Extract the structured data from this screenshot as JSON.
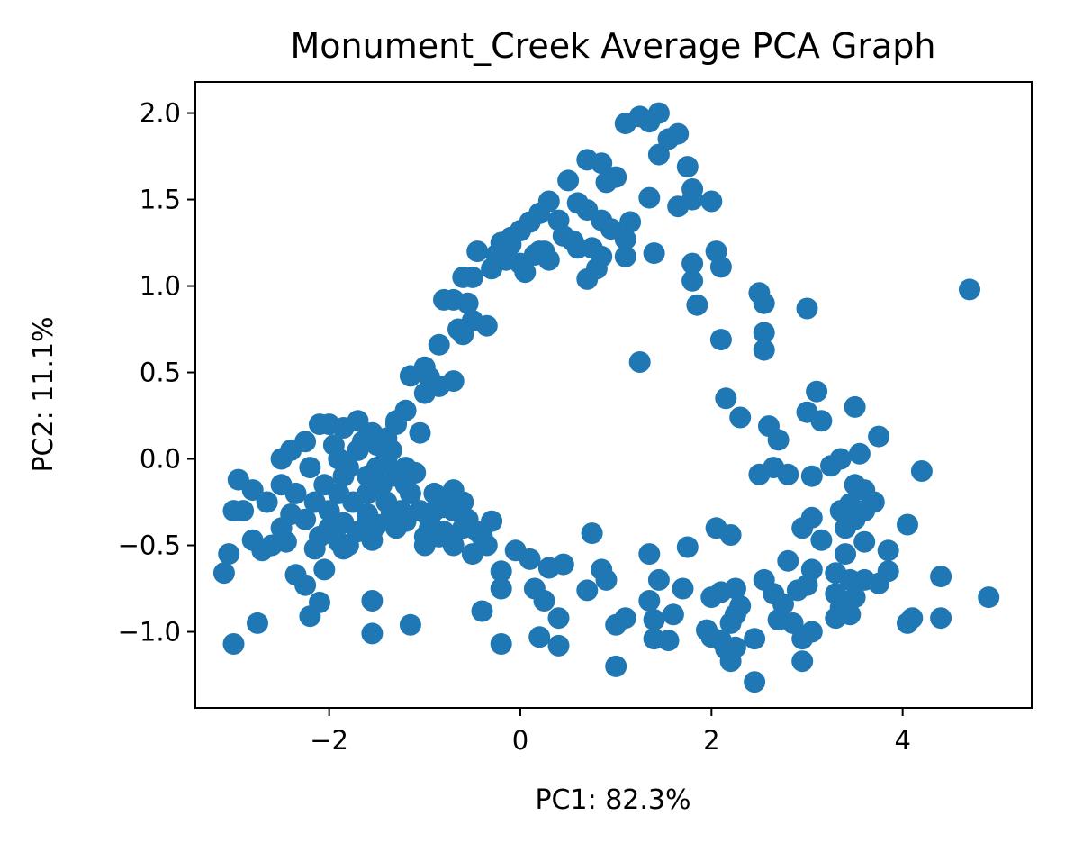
{
  "chart_data": {
    "type": "scatter",
    "title": "Monument_Creek Average PCA Graph",
    "xlabel": "PC1: 82.3%",
    "ylabel": "PC2: 11.1%",
    "xlim": [
      -3.4,
      5.35
    ],
    "ylim": [
      -1.44,
      2.18
    ],
    "xticks": [
      -2,
      0,
      2,
      4
    ],
    "xtick_labels": [
      "−2",
      "0",
      "2",
      "4"
    ],
    "yticks": [
      -1.0,
      -0.5,
      0.0,
      0.5,
      1.0,
      1.5,
      2.0
    ],
    "ytick_labels": [
      "−1.0",
      "−0.5",
      "0.0",
      "0.5",
      "1.0",
      "1.5",
      "2.0"
    ],
    "grid": false,
    "legend": "none",
    "marker_color": "#1f77b4",
    "series": [
      {
        "points": [
          [
            1.1,
            1.94
          ],
          [
            1.25,
            1.98
          ],
          [
            1.35,
            1.95
          ],
          [
            1.45,
            2.0
          ],
          [
            1.55,
            1.85
          ],
          [
            1.65,
            1.88
          ],
          [
            1.45,
            1.76
          ],
          [
            1.75,
            1.69
          ],
          [
            1.8,
            1.56
          ],
          [
            1.8,
            1.5
          ],
          [
            1.35,
            1.51
          ],
          [
            1.65,
            1.46
          ],
          [
            2.0,
            1.49
          ],
          [
            0.7,
            1.73
          ],
          [
            0.85,
            1.71
          ],
          [
            0.9,
            1.6
          ],
          [
            1.0,
            1.63
          ],
          [
            0.5,
            1.61
          ],
          [
            0.6,
            1.48
          ],
          [
            0.7,
            1.44
          ],
          [
            0.3,
            1.49
          ],
          [
            0.4,
            1.38
          ],
          [
            0.2,
            1.42
          ],
          [
            0.1,
            1.37
          ],
          [
            0.0,
            1.32
          ],
          [
            -0.1,
            1.28
          ],
          [
            -0.2,
            1.25
          ],
          [
            0.25,
            1.2
          ],
          [
            0.55,
            1.26
          ],
          [
            0.75,
            1.22
          ],
          [
            0.85,
            1.38
          ],
          [
            0.95,
            1.33
          ],
          [
            1.15,
            1.37
          ],
          [
            1.1,
            1.27
          ],
          [
            1.4,
            1.19
          ],
          [
            1.1,
            1.17
          ],
          [
            0.85,
            1.17
          ],
          [
            0.8,
            1.1
          ],
          [
            0.7,
            1.04
          ],
          [
            0.6,
            1.22
          ],
          [
            0.45,
            1.29
          ],
          [
            0.2,
            1.2
          ],
          [
            0.3,
            1.15
          ],
          [
            0.0,
            1.13
          ],
          [
            -0.15,
            1.15
          ],
          [
            -0.3,
            1.1
          ],
          [
            -0.45,
            1.2
          ],
          [
            -0.5,
            1.05
          ],
          [
            -0.6,
            1.05
          ],
          [
            -0.25,
            1.18
          ],
          [
            0.05,
            1.08
          ],
          [
            0.15,
            1.18
          ],
          [
            -0.1,
            1.24
          ],
          [
            -0.55,
            0.9
          ],
          [
            -0.7,
            0.92
          ],
          [
            -0.8,
            0.92
          ],
          [
            -0.5,
            0.8
          ],
          [
            -0.35,
            0.77
          ],
          [
            -0.65,
            0.75
          ],
          [
            -0.6,
            0.72
          ],
          [
            -0.85,
            0.66
          ],
          [
            -1.15,
            0.48
          ],
          [
            -1.0,
            0.53
          ],
          [
            -0.95,
            0.47
          ],
          [
            -0.7,
            0.45
          ],
          [
            -0.85,
            0.42
          ],
          [
            -1.0,
            0.38
          ],
          [
            -1.2,
            0.28
          ],
          [
            -1.3,
            0.22
          ],
          [
            -1.05,
            0.15
          ],
          [
            2.05,
            1.2
          ],
          [
            2.1,
            1.11
          ],
          [
            1.8,
            1.13
          ],
          [
            1.8,
            1.03
          ],
          [
            1.85,
            0.89
          ],
          [
            2.1,
            0.69
          ],
          [
            2.5,
            0.96
          ],
          [
            2.55,
            0.9
          ],
          [
            2.55,
            0.73
          ],
          [
            2.55,
            0.63
          ],
          [
            3.0,
            0.87
          ],
          [
            1.25,
            0.56
          ],
          [
            2.15,
            0.35
          ],
          [
            2.3,
            0.24
          ],
          [
            2.6,
            0.19
          ],
          [
            2.7,
            0.11
          ],
          [
            2.5,
            -0.09
          ],
          [
            2.65,
            -0.05
          ],
          [
            2.8,
            -0.09
          ],
          [
            3.0,
            0.27
          ],
          [
            3.1,
            0.39
          ],
          [
            3.15,
            0.22
          ],
          [
            3.5,
            0.3
          ],
          [
            3.75,
            0.13
          ],
          [
            4.7,
            0.98
          ],
          [
            3.05,
            -0.1
          ],
          [
            3.25,
            -0.04
          ],
          [
            3.35,
            0.0
          ],
          [
            3.55,
            0.03
          ],
          [
            3.5,
            -0.15
          ],
          [
            3.6,
            -0.18
          ],
          [
            3.45,
            -0.26
          ],
          [
            3.5,
            -0.35
          ],
          [
            3.6,
            -0.3
          ],
          [
            3.7,
            -0.25
          ],
          [
            3.35,
            -0.3
          ],
          [
            3.4,
            -0.4
          ],
          [
            3.05,
            -0.34
          ],
          [
            2.95,
            -0.4
          ],
          [
            3.15,
            -0.47
          ],
          [
            3.4,
            -0.55
          ],
          [
            3.6,
            -0.48
          ],
          [
            4.05,
            -0.38
          ],
          [
            4.2,
            -0.07
          ],
          [
            2.8,
            -0.59
          ],
          [
            3.05,
            -0.64
          ],
          [
            3.3,
            -0.66
          ],
          [
            3.45,
            -0.7
          ],
          [
            3.6,
            -0.7
          ],
          [
            3.75,
            -0.72
          ],
          [
            3.85,
            -0.65
          ],
          [
            3.85,
            -0.53
          ],
          [
            2.55,
            -0.7
          ],
          [
            2.65,
            -0.78
          ],
          [
            2.75,
            -0.84
          ],
          [
            2.9,
            -0.76
          ],
          [
            3.0,
            -0.73
          ],
          [
            3.3,
            -0.78
          ],
          [
            3.35,
            -0.86
          ],
          [
            3.5,
            -0.8
          ],
          [
            2.7,
            -0.93
          ],
          [
            2.85,
            -0.95
          ],
          [
            3.05,
            -1.0
          ],
          [
            3.3,
            -0.92
          ],
          [
            3.45,
            -0.9
          ],
          [
            2.95,
            -1.04
          ],
          [
            2.95,
            -1.17
          ],
          [
            2.45,
            -1.04
          ],
          [
            2.45,
            -1.29
          ],
          [
            4.05,
            -0.95
          ],
          [
            4.1,
            -0.92
          ],
          [
            4.4,
            -0.92
          ],
          [
            4.4,
            -0.68
          ],
          [
            4.9,
            -0.8
          ],
          [
            2.0,
            -0.8
          ],
          [
            2.1,
            -0.77
          ],
          [
            2.25,
            -0.75
          ],
          [
            2.3,
            -0.85
          ],
          [
            2.25,
            -0.9
          ],
          [
            2.2,
            -0.95
          ],
          [
            1.95,
            -0.99
          ],
          [
            2.0,
            -1.03
          ],
          [
            2.1,
            -1.05
          ],
          [
            2.15,
            -1.1
          ],
          [
            2.25,
            -1.09
          ],
          [
            2.2,
            -1.17
          ],
          [
            2.05,
            -0.4
          ],
          [
            2.2,
            -0.44
          ],
          [
            1.75,
            -0.51
          ],
          [
            1.7,
            -0.75
          ],
          [
            1.6,
            -0.9
          ],
          [
            1.45,
            -0.7
          ],
          [
            1.35,
            -0.55
          ],
          [
            1.35,
            -0.82
          ],
          [
            1.4,
            -1.04
          ],
          [
            1.55,
            -1.05
          ],
          [
            1.4,
            -0.93
          ],
          [
            0.75,
            -0.43
          ],
          [
            0.85,
            -0.64
          ],
          [
            0.9,
            -0.7
          ],
          [
            0.7,
            -0.76
          ],
          [
            1.0,
            -0.96
          ],
          [
            1.1,
            -0.92
          ],
          [
            1.0,
            -1.2
          ],
          [
            0.45,
            -0.61
          ],
          [
            0.3,
            -0.63
          ],
          [
            0.15,
            -0.75
          ],
          [
            0.25,
            -0.82
          ],
          [
            0.4,
            -0.92
          ],
          [
            0.4,
            -1.08
          ],
          [
            0.2,
            -1.03
          ],
          [
            -0.2,
            -1.07
          ],
          [
            -0.4,
            -0.88
          ],
          [
            -0.2,
            -0.75
          ],
          [
            -0.2,
            -0.65
          ],
          [
            -0.05,
            -0.53
          ],
          [
            0.1,
            -0.58
          ],
          [
            -0.3,
            -0.36
          ],
          [
            -0.4,
            -0.45
          ],
          [
            -0.35,
            -0.5
          ],
          [
            -0.5,
            -0.55
          ],
          [
            -0.7,
            -0.5
          ],
          [
            -0.6,
            -0.4
          ],
          [
            -0.7,
            -0.3
          ],
          [
            -0.8,
            -0.42
          ],
          [
            -0.9,
            -0.3
          ],
          [
            -0.95,
            -0.4
          ],
          [
            -1.0,
            -0.5
          ],
          [
            -0.9,
            -0.2
          ],
          [
            -0.7,
            -0.18
          ],
          [
            -0.6,
            -0.25
          ],
          [
            -1.2,
            -0.36
          ],
          [
            -1.3,
            -0.4
          ],
          [
            -1.5,
            -0.38
          ],
          [
            -1.6,
            -0.32
          ],
          [
            -1.7,
            -0.42
          ],
          [
            -1.55,
            -0.47
          ],
          [
            -1.85,
            -0.37
          ],
          [
            -2.0,
            -0.4
          ],
          [
            -2.1,
            -0.45
          ],
          [
            -2.25,
            -0.35
          ],
          [
            -2.4,
            -0.32
          ],
          [
            -2.5,
            -0.4
          ],
          [
            -2.45,
            -0.48
          ],
          [
            -2.6,
            -0.5
          ],
          [
            -2.7,
            -0.53
          ],
          [
            -2.8,
            -0.47
          ],
          [
            -2.9,
            -0.3
          ],
          [
            -3.0,
            -0.3
          ],
          [
            -2.95,
            -0.12
          ],
          [
            -2.8,
            -0.18
          ],
          [
            -2.65,
            -0.25
          ],
          [
            -2.5,
            -0.15
          ],
          [
            -2.35,
            -0.2
          ],
          [
            -2.2,
            -0.05
          ],
          [
            -2.5,
            0.0
          ],
          [
            -2.4,
            0.05
          ],
          [
            -2.25,
            0.1
          ],
          [
            -2.1,
            0.2
          ],
          [
            -2.0,
            0.2
          ],
          [
            -1.85,
            0.18
          ],
          [
            -1.7,
            0.22
          ],
          [
            -1.55,
            0.15
          ],
          [
            -1.4,
            0.12
          ],
          [
            -1.3,
            0.2
          ],
          [
            -1.9,
            0.0
          ],
          [
            -1.8,
            -0.05
          ],
          [
            -1.7,
            0.05
          ],
          [
            -1.6,
            -0.1
          ],
          [
            -1.5,
            -0.05
          ],
          [
            -1.4,
            0.0
          ],
          [
            -1.3,
            -0.1
          ],
          [
            -1.2,
            -0.05
          ],
          [
            -1.15,
            -0.2
          ],
          [
            -1.25,
            -0.3
          ],
          [
            -1.4,
            -0.25
          ],
          [
            -1.6,
            -0.2
          ],
          [
            -1.75,
            -0.25
          ],
          [
            -1.9,
            -0.2
          ],
          [
            -2.05,
            -0.15
          ],
          [
            -2.15,
            -0.25
          ],
          [
            -2.0,
            -0.3
          ],
          [
            -1.85,
            -0.1
          ],
          [
            -1.95,
            0.08
          ],
          [
            -1.65,
            0.1
          ],
          [
            -1.5,
            0.08
          ],
          [
            -1.35,
            0.05
          ],
          [
            -1.6,
            -0.35
          ],
          [
            -1.45,
            -0.15
          ],
          [
            -2.15,
            -0.52
          ],
          [
            -1.9,
            -0.48
          ],
          [
            -1.8,
            -0.5
          ],
          [
            -1.55,
            -0.42
          ],
          [
            -1.85,
            -0.52
          ],
          [
            -2.35,
            -0.67
          ],
          [
            -2.25,
            -0.73
          ],
          [
            -2.05,
            -0.64
          ],
          [
            -2.1,
            -0.83
          ],
          [
            -2.2,
            -0.91
          ],
          [
            -2.75,
            -0.95
          ],
          [
            -3.0,
            -1.07
          ],
          [
            -3.05,
            -0.55
          ],
          [
            -3.1,
            -0.66
          ],
          [
            -1.55,
            -0.82
          ],
          [
            -1.55,
            -1.01
          ],
          [
            -1.15,
            -0.96
          ],
          [
            -1.2,
            -0.15
          ],
          [
            -1.05,
            -0.3
          ],
          [
            -0.95,
            -0.35
          ],
          [
            -0.8,
            -0.28
          ],
          [
            -0.55,
            -0.35
          ],
          [
            -0.45,
            -0.42
          ],
          [
            -1.1,
            -0.08
          ],
          [
            -1.0,
            -0.45
          ],
          [
            -1.35,
            -0.32
          ],
          [
            -0.85,
            -0.45
          ]
        ]
      }
    ]
  }
}
